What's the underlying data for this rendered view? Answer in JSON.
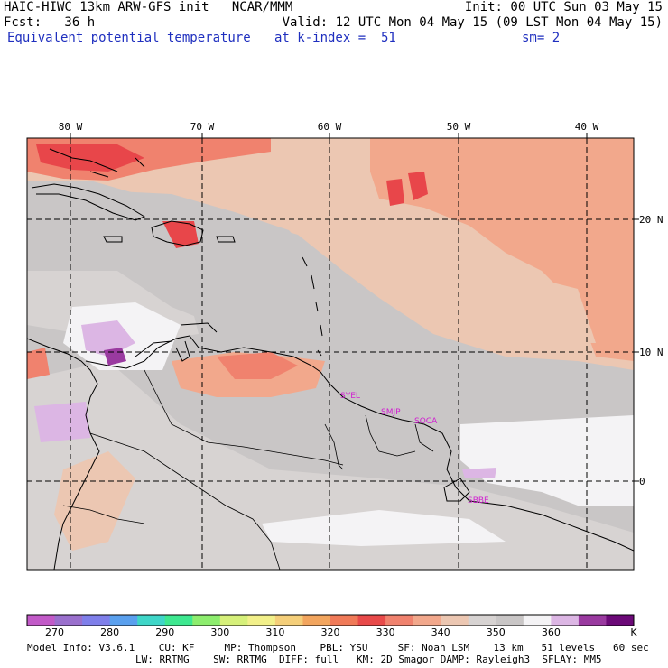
{
  "header": {
    "line1_left": "HAIC-HIWC 13km ARW-GFS init   NCAR/MMM",
    "line1_right": "Init: 00 UTC Sun 03 May 15",
    "line2_left": "Fcst:   36 h",
    "line2_right": "Valid: 12 UTC Mon 04 May 15 (09 LST Mon 04 May 15)",
    "line3_field": "Equivalent potential temperature",
    "line3_level": "at k-index =  51",
    "line3_smooth": "sm= 2"
  },
  "map": {
    "lon_labels": [
      "80 W",
      "70 W",
      "60 W",
      "50 W",
      "40 W"
    ],
    "lat_labels": [
      "20 N",
      "10 N",
      "0"
    ],
    "stations": [
      "SYEL",
      "SMJP",
      "SOCA",
      "SBBE"
    ],
    "colors": {
      "background": "#c9c6c6",
      "light_gray": "#d7d3d2",
      "pale_peach": "#ecc7b2",
      "peach": "#f2a88c",
      "salmon": "#f0826e",
      "red": "#e8464a",
      "white": "#f4f3f5",
      "lavender": "#dcb6e4",
      "purple": "#9a3aa0",
      "station_text": "#d01fd0",
      "grid_line": "#000000"
    }
  },
  "colorbar": {
    "labels": [
      "270",
      "280",
      "290",
      "300",
      "310",
      "320",
      "330",
      "340",
      "350",
      "360"
    ],
    "unit": "K",
    "colors": [
      "#c25ac8",
      "#9a70cd",
      "#7f7fea",
      "#5aa0ee",
      "#3fd6c8",
      "#3ee890",
      "#8ded6e",
      "#d6f07a",
      "#f2f08a",
      "#f5cf7a",
      "#f2a55e",
      "#f07a58",
      "#e84a4a",
      "#f0826e",
      "#f2a88c",
      "#ecc7b2",
      "#d7d3d2",
      "#c9c6c6",
      "#f4f3f5",
      "#dcb6e4",
      "#9a3aa0",
      "#6c0a78"
    ]
  },
  "footer": {
    "line1": "Model Info: V3.6.1    CU: KF     MP: Thompson    PBL: YSU     SF: Noah LSM    13 km   51 levels   60 sec",
    "line2": "LW: RRTMG    SW: RRTMG  DIFF: full   KM: 2D Smagor DAMP: Rayleigh3  SFLAY: MM5"
  }
}
